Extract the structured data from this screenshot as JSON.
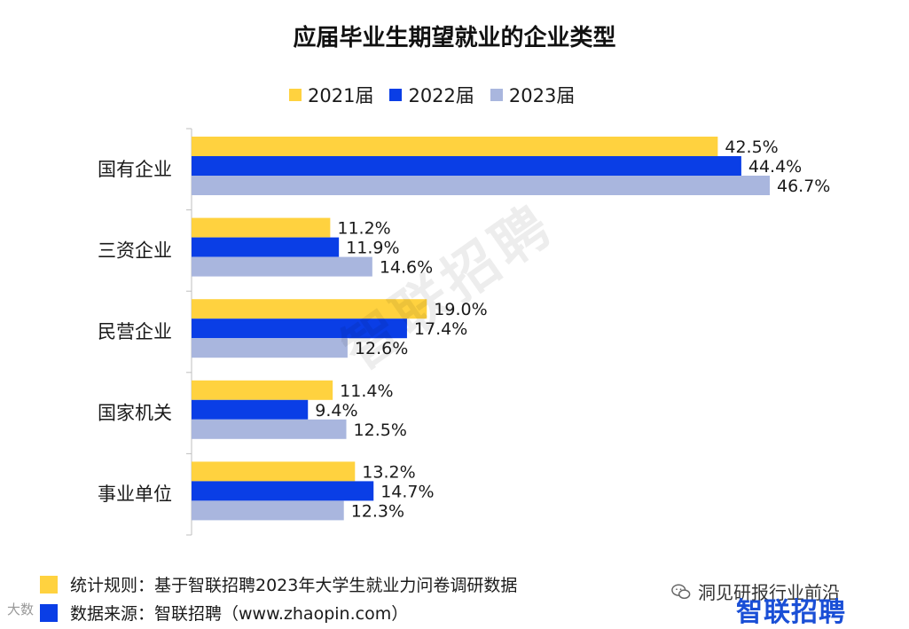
{
  "chart_data": {
    "type": "bar",
    "orientation": "horizontal",
    "title": "应届毕业生期望就业的企业类型",
    "categories": [
      "国有企业",
      "三资企业",
      "民营企业",
      "国家机关",
      "事业单位"
    ],
    "series": [
      {
        "name": "2021届",
        "color": "#FFD23F",
        "values": [
          42.5,
          11.2,
          19.0,
          11.4,
          13.2
        ],
        "labels": [
          "42.5%",
          "11.2%",
          "19.0%",
          "11.4%",
          "13.2%"
        ]
      },
      {
        "name": "2022届",
        "color": "#0A3EE6",
        "values": [
          44.4,
          11.9,
          17.4,
          9.4,
          14.7
        ],
        "labels": [
          "44.4%",
          "11.9%",
          "17.4%",
          "9.4%",
          "14.7%"
        ]
      },
      {
        "name": "2023届",
        "color": "#A9B6DE",
        "values": [
          46.7,
          14.6,
          12.6,
          12.5,
          12.3
        ],
        "labels": [
          "46.7%",
          "14.6%",
          "12.6%",
          "12.5%",
          "12.3%"
        ]
      }
    ],
    "xlim": [
      0,
      50
    ],
    "legend_position": "top-center",
    "grid": false,
    "unit": "%"
  },
  "watermark": "智联招聘",
  "footer": {
    "rule_label": "统计规则：基于智联招聘2023年大学生就业力问卷调研数据",
    "rule_swatch_color": "#FFD23F",
    "source_label": "数据来源：智联招聘（www.zhaopin.com）",
    "source_swatch_color": "#0A3EE6",
    "left_watermark": "大数",
    "wechat_account": "洞见研报行业前沿",
    "brand_logo": "智联招聘"
  }
}
